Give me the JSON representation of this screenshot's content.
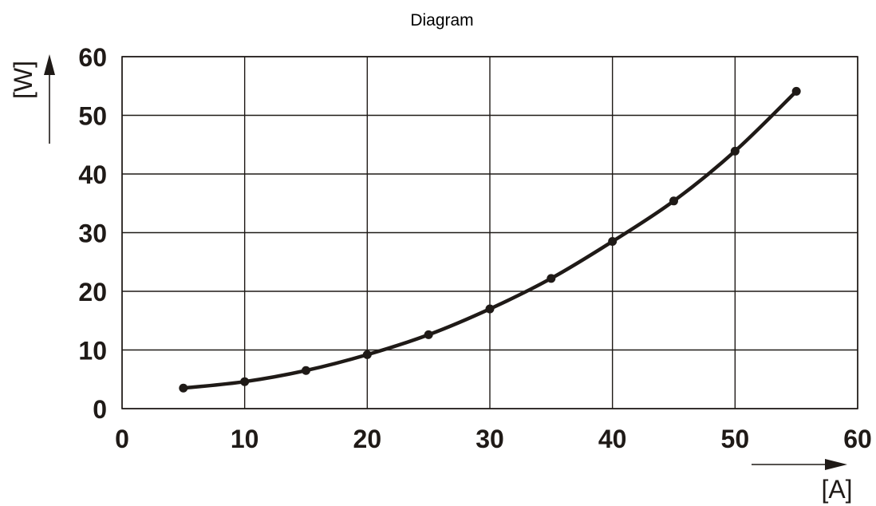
{
  "chart_data": {
    "type": "line",
    "title": "Diagram",
    "xlabel": "[A]",
    "ylabel": "[W]",
    "xlim": [
      0,
      60
    ],
    "ylim": [
      0,
      60
    ],
    "xticks": [
      0,
      10,
      20,
      30,
      40,
      50,
      60
    ],
    "yticks": [
      0,
      10,
      20,
      30,
      40,
      50,
      60
    ],
    "grid": true,
    "series": [
      {
        "x": [
          5,
          10,
          15,
          20,
          25,
          30,
          35,
          40,
          45,
          50,
          55
        ],
        "y": [
          3.5,
          4.6,
          6.5,
          9.2,
          12.6,
          17.0,
          22.2,
          28.5,
          35.4,
          43.9,
          54.1
        ]
      }
    ],
    "colors": {
      "ink": "#1f1a17"
    }
  }
}
